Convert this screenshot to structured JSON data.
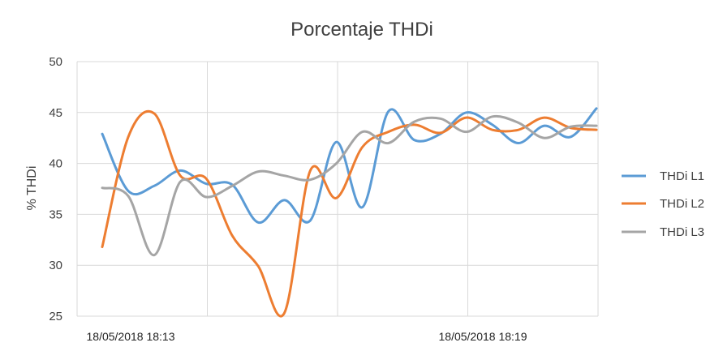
{
  "chart_data": {
    "type": "line",
    "title": "Porcentaje THDi",
    "xlabel": "",
    "ylabel": "% THDi",
    "ylim": [
      25,
      50
    ],
    "yticks": [
      25,
      30,
      35,
      40,
      45,
      50
    ],
    "x_tick_labels": [
      "18/05/2018 18:13",
      "18/05/2018 18:19"
    ],
    "grid": true,
    "legend_position": "right",
    "x": [
      0,
      1,
      2,
      3,
      4,
      5,
      6,
      7,
      8,
      9,
      10,
      11,
      12,
      13,
      14,
      15,
      16,
      17,
      18,
      19
    ],
    "series": [
      {
        "name": "THDi L1",
        "color": "#5B9BD5",
        "values": [
          42.9,
          37.3,
          37.8,
          39.3,
          38.0,
          37.9,
          34.2,
          36.4,
          34.4,
          42.1,
          35.7,
          45.1,
          42.3,
          42.9,
          45.0,
          43.8,
          42.0,
          43.7,
          42.6,
          45.4
        ]
      },
      {
        "name": "THDi L2",
        "color": "#ED7D31",
        "values": [
          31.8,
          42.6,
          44.9,
          38.8,
          38.5,
          32.9,
          29.9,
          25.3,
          39.3,
          36.6,
          41.6,
          43.1,
          43.8,
          43.0,
          44.5,
          43.3,
          43.3,
          44.5,
          43.5,
          43.3
        ]
      },
      {
        "name": "THDi L3",
        "color": "#A5A5A5",
        "values": [
          37.6,
          36.8,
          31.0,
          38.2,
          36.7,
          37.8,
          39.2,
          38.8,
          38.4,
          40.0,
          43.1,
          42.0,
          44.1,
          44.4,
          43.1,
          44.6,
          44.0,
          42.5,
          43.6,
          43.7
        ]
      }
    ]
  }
}
